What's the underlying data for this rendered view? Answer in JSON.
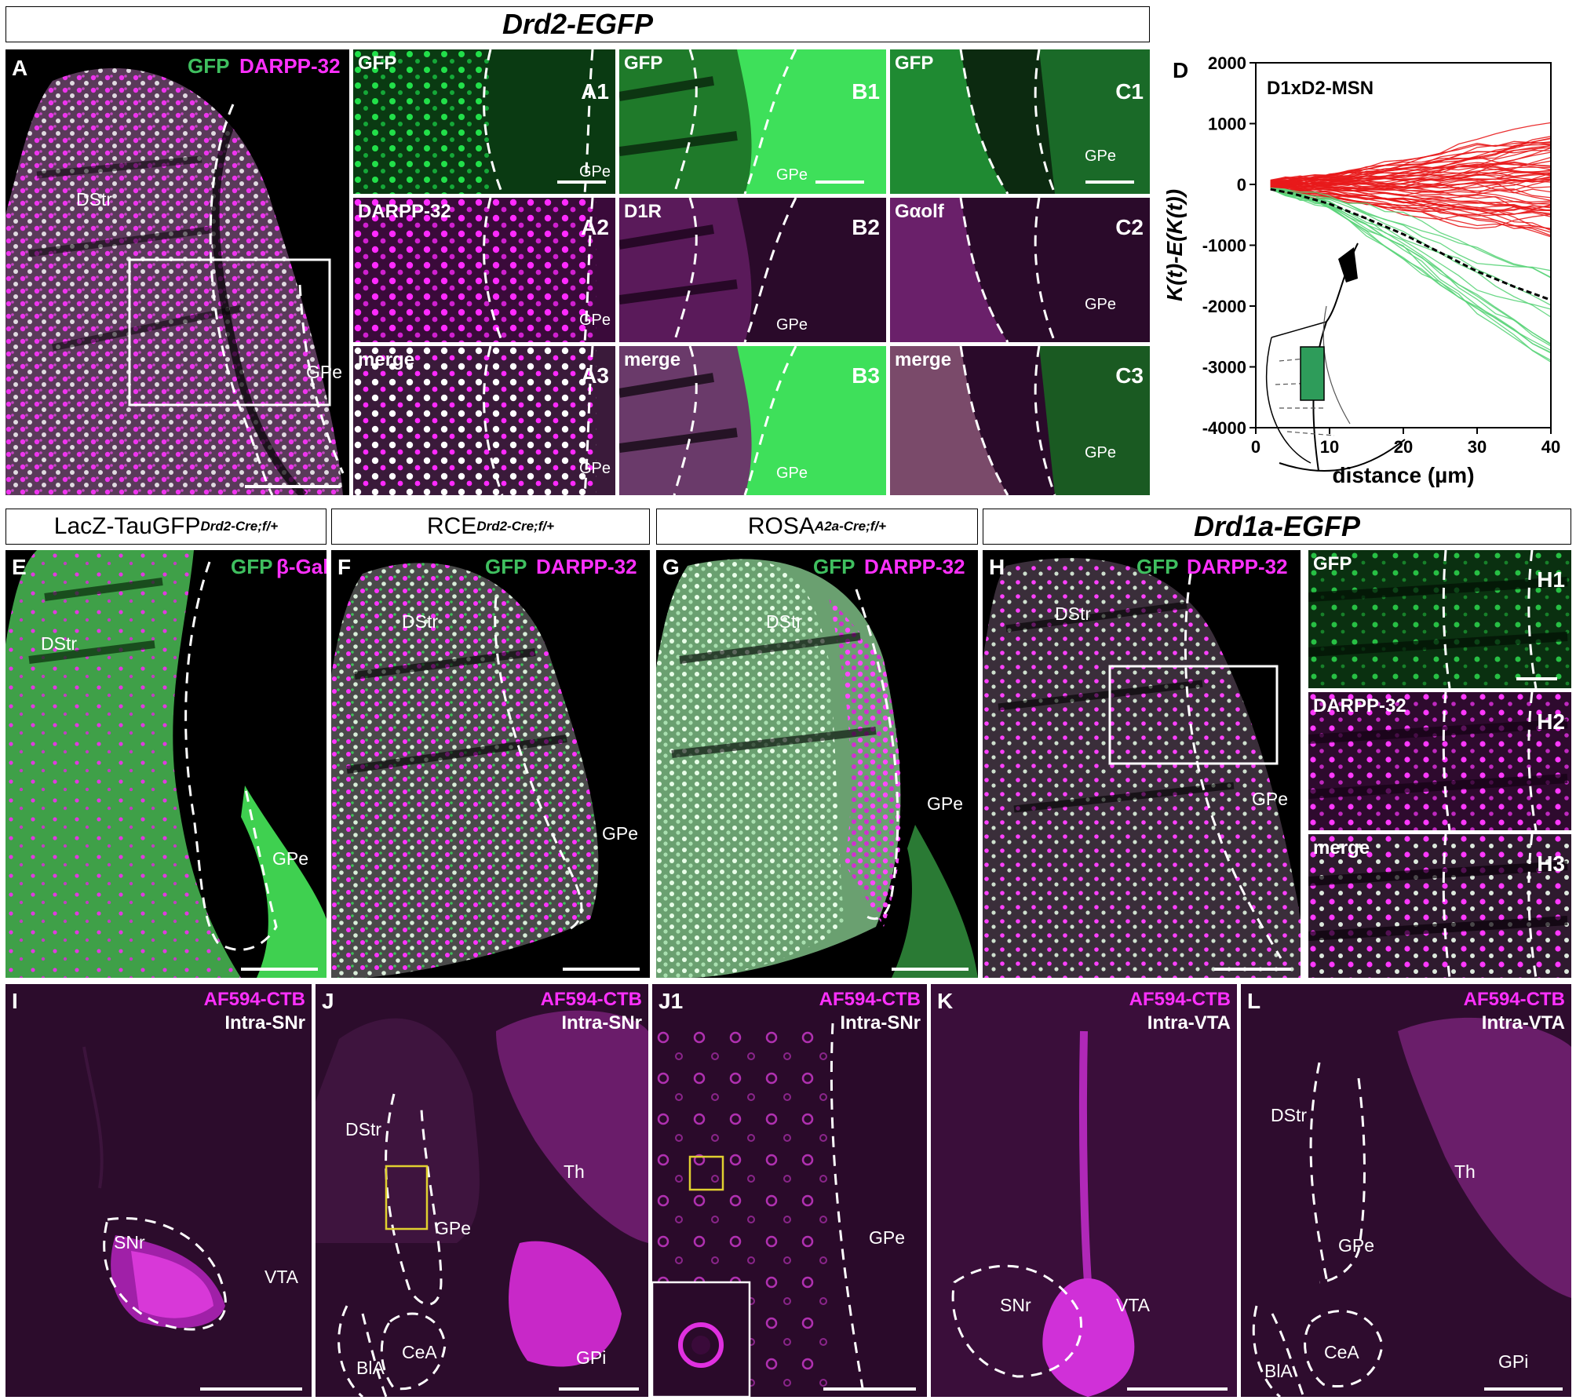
{
  "headers": {
    "drd2": "Drd2-EGFP",
    "lacz": "LacZ-TauGFP",
    "lacz_sup": "Drd2-Cre;f/+",
    "rce": "RCE",
    "rce_sup": "Drd2-Cre;f/+",
    "rosa": "ROSA",
    "rosa_sup": "A2a-Cre;f/+",
    "drd1a": "Drd1a-EGFP"
  },
  "panels": {
    "A": {
      "letter": "A",
      "ch1": "GFP",
      "ch2": "DARPP-32",
      "r1": "DStr",
      "r2": "GPe"
    },
    "A1": {
      "id": "A1",
      "ch": "GFP",
      "r": "GPe"
    },
    "A2": {
      "id": "A2",
      "ch": "DARPP-32",
      "r": "GPe"
    },
    "A3": {
      "id": "A3",
      "ch": "merge",
      "r": "GPe"
    },
    "B1": {
      "id": "B1",
      "ch": "GFP",
      "r": "GPe"
    },
    "B2": {
      "id": "B2",
      "ch": "D1R",
      "r": "GPe"
    },
    "B3": {
      "id": "B3",
      "ch": "merge",
      "r": "GPe"
    },
    "C1": {
      "id": "C1",
      "ch": "GFP",
      "r": "GPe"
    },
    "C2": {
      "id": "C2",
      "ch": "Gαolf",
      "r": "GPe"
    },
    "C3": {
      "id": "C3",
      "ch": "merge",
      "r": "GPe"
    },
    "E": {
      "letter": "E",
      "ch1": "GFP",
      "ch2": "β-Gal",
      "r1": "DStr",
      "r2": "GPe"
    },
    "F": {
      "letter": "F",
      "ch1": "GFP",
      "ch2": "DARPP-32",
      "r1": "DStr",
      "r2": "GPe"
    },
    "G": {
      "letter": "G",
      "ch1": "GFP",
      "ch2": "DARPP-32",
      "r1": "DStr",
      "r2": "GPe"
    },
    "H": {
      "letter": "H",
      "ch1": "GFP",
      "ch2": "DARPP-32",
      "r1": "DStr",
      "r2": "GPe"
    },
    "H1": {
      "id": "H1",
      "ch": "GFP"
    },
    "H2": {
      "id": "H2",
      "ch": "DARPP-32"
    },
    "H3": {
      "id": "H3",
      "ch": "merge"
    },
    "I": {
      "letter": "I",
      "tracer": "AF594-CTB",
      "site": "Intra-SNr",
      "r1": "SNr",
      "r2": "VTA"
    },
    "J": {
      "letter": "J",
      "tracer": "AF594-CTB",
      "site": "Intra-SNr",
      "r1": "DStr",
      "r2": "Th",
      "r3": "GPe",
      "r4": "GPi",
      "r5": "BlA",
      "r6": "CeA"
    },
    "J1": {
      "letter": "J1",
      "tracer": "AF594-CTB",
      "site": "Intra-SNr",
      "r1": "GPe"
    },
    "K": {
      "letter": "K",
      "tracer": "AF594-CTB",
      "site": "Intra-VTA",
      "r1": "SNr",
      "r2": "VTA"
    },
    "L": {
      "letter": "L",
      "tracer": "AF594-CTB",
      "site": "Intra-VTA",
      "r1": "DStr",
      "r2": "Th",
      "r3": "GPe",
      "r4": "GPi",
      "r5": "BlA",
      "r6": "CeA"
    }
  },
  "chart_data": {
    "type": "line",
    "panel_letter": "D",
    "title": "D1xD2-MSN",
    "xlabel": "distance (µm)",
    "ylabel": "K(t)-E(K(t))",
    "xlim": [
      0,
      40
    ],
    "ylim": [
      -4000,
      2000
    ],
    "xticks": [
      0,
      10,
      20,
      30,
      40
    ],
    "yticks": [
      2000,
      1000,
      0,
      -1000,
      -2000,
      -3000,
      -4000
    ],
    "series": [
      {
        "color": "#e8191b",
        "x": [
          2,
          10,
          20,
          30,
          40
        ],
        "y_min": [
          -80,
          -200,
          -400,
          -600,
          -700
        ],
        "y_max": [
          80,
          200,
          400,
          700,
          900
        ],
        "count": 60
      },
      {
        "color": "#5bd47a",
        "x": [
          2,
          10,
          20,
          30,
          40
        ],
        "y_min": [
          -80,
          -400,
          -1300,
          -2400,
          -3300
        ],
        "y_max": [
          -60,
          -200,
          -500,
          -900,
          -1300
        ],
        "count": 14
      },
      {
        "color": "#000000",
        "dashed": true,
        "x": [
          2,
          5,
          10,
          15,
          20,
          25,
          30,
          35,
          40
        ],
        "y": [
          -80,
          -150,
          -320,
          -560,
          -820,
          -1120,
          -1430,
          -1680,
          -1900
        ]
      }
    ]
  }
}
